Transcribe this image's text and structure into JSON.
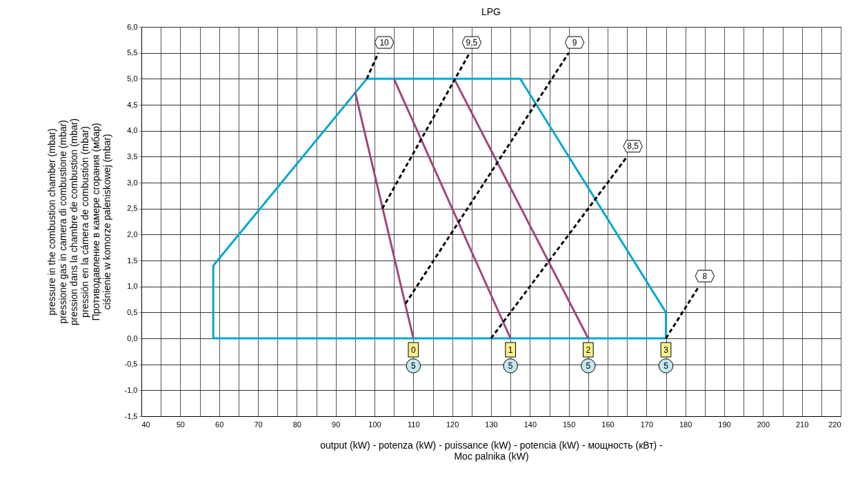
{
  "chart_data": {
    "type": "line",
    "title": "LPG",
    "xlabel": "output (kW) - potenza (kW) - puissance (kW) - potencia (kW) - мощность (кВт) -\nMoc palnika  (kW)",
    "ylabel": "pressure in the combustion chamber (mbar)\npressione gas in camera di combustione (mbar)\npression dans la chambre de combustion (mbar)\npressión en la cámera de combustión (mbar)\nПротиводавление в камере сгорания (мбар)\nciśnienie w komorze paleniskowej (mbar)",
    "xlim": [
      40,
      220
    ],
    "xticks": [
      40,
      {
        "value": 45,
        "label": null
      },
      50,
      {
        "value": 55,
        "label": null
      },
      60,
      {
        "value": 65,
        "label": null
      },
      70,
      {
        "value": 75,
        "label": null
      },
      80,
      {
        "value": 85,
        "label": null
      },
      90,
      {
        "value": 95,
        "label": null
      },
      100,
      {
        "value": 105,
        "label": null
      },
      110,
      {
        "value": 115,
        "label": null
      },
      120,
      {
        "value": 125,
        "label": null
      },
      130,
      {
        "value": 135,
        "label": null
      },
      140,
      {
        "value": 145,
        "label": null
      },
      150,
      {
        "value": 155,
        "label": null
      },
      160,
      {
        "value": 165,
        "label": null
      },
      170,
      {
        "value": 175,
        "label": null
      },
      180,
      {
        "value": 185,
        "label": null
      },
      190,
      {
        "value": 195,
        "label": null
      },
      200,
      {
        "value": 205,
        "label": null
      },
      210,
      {
        "value": 215,
        "label": null
      },
      220
    ],
    "ylim": [
      -1.5,
      6
    ],
    "yticks": [
      {
        "value": -1.5,
        "label": "-1,5"
      },
      {
        "value": -1,
        "label": "-1,0"
      },
      {
        "value": -0.5,
        "label": "-0,5"
      },
      {
        "value": 0,
        "label": "0,0"
      },
      {
        "value": 0.5,
        "label": "0,5"
      },
      {
        "value": 1,
        "label": "1,0"
      },
      {
        "value": 1.5,
        "label": "1,5"
      },
      {
        "value": 2,
        "label": "2,0"
      },
      {
        "value": 2.5,
        "label": "2,5"
      },
      {
        "value": 3,
        "label": "3,0"
      },
      {
        "value": 3.5,
        "label": "3,5"
      },
      {
        "value": 4,
        "label": "4,0"
      },
      {
        "value": 4.5,
        "label": "4,5"
      },
      {
        "value": 5,
        "label": "5,0"
      },
      {
        "value": 5.5,
        "label": "5,5"
      },
      {
        "value": 6,
        "label": "6,0"
      }
    ],
    "grid": true,
    "series": [
      {
        "color": "#00a8d4",
        "line_style": "solid",
        "x": [
          58.5,
          58.5,
          98,
          137.5,
          175,
          175
        ],
        "values": [
          0,
          1.4,
          5,
          5,
          0.5,
          0
        ]
      },
      {
        "color": "#00a8d4",
        "line_style": "solid",
        "x": [
          58.5,
          175
        ],
        "values": [
          0,
          0
        ]
      },
      {
        "color": "#a0457a",
        "line_style": "solid",
        "x": [
          95,
          110
        ],
        "values": [
          4.75,
          0
        ]
      },
      {
        "color": "#a0457a",
        "line_style": "solid",
        "x": [
          105,
          135
        ],
        "values": [
          5,
          0
        ]
      },
      {
        "color": "#a0457a",
        "line_style": "solid",
        "x": [
          120.5,
          155
        ],
        "values": [
          5,
          0
        ]
      },
      {
        "color": "#000000",
        "line_style": "dashed",
        "x": [
          98,
          101
        ],
        "values": [
          5,
          5.5
        ]
      },
      {
        "color": "#000000",
        "line_style": "dashed",
        "x": [
          102,
          124.5
        ],
        "values": [
          2.5,
          5.5
        ]
      },
      {
        "color": "#000000",
        "line_style": "dashed",
        "x": [
          108,
          150
        ],
        "values": [
          0.67,
          5.5
        ]
      },
      {
        "color": "#000000",
        "line_style": "dashed",
        "x": [
          130,
          165
        ],
        "values": [
          0,
          3.5
        ]
      },
      {
        "color": "#000000",
        "line_style": "dashed",
        "x": [
          175,
          183.5
        ],
        "values": [
          0,
          1
        ]
      }
    ],
    "annotations": [
      {
        "text": "10",
        "x": 102.5,
        "y": 5.7
      },
      {
        "text": "9,5",
        "x": 125,
        "y": 5.7
      },
      {
        "text": "9",
        "x": 151.5,
        "y": 5.7
      },
      {
        "text": "8,5",
        "x": 166.5,
        "y": 3.7
      },
      {
        "text": "8",
        "x": 185,
        "y": 1.2
      },
      {
        "text": "0",
        "x": 110,
        "y": -0.22
      },
      {
        "text": "1",
        "x": 135,
        "y": -0.22
      },
      {
        "text": "2",
        "x": 155,
        "y": -0.22
      },
      {
        "text": "3",
        "x": 175,
        "y": -0.22
      },
      {
        "text": "5",
        "x": 110,
        "y": -0.53
      },
      {
        "text": "5",
        "x": 135,
        "y": -0.53
      },
      {
        "text": "5",
        "x": 155,
        "y": -0.53
      },
      {
        "text": "5",
        "x": 175,
        "y": -0.53
      }
    ]
  }
}
